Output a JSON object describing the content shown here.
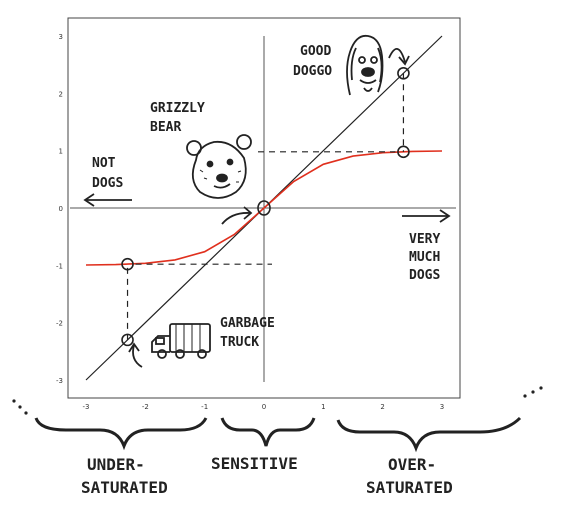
{
  "chart_data": {
    "type": "line",
    "xlim": [
      -3,
      3
    ],
    "ylim": [
      -3,
      3
    ],
    "x_ticks": [
      -3,
      -2,
      -1,
      0,
      1,
      2,
      3
    ],
    "y_ticks": [
      -3,
      -2,
      -1,
      0,
      1,
      2,
      3
    ],
    "series": [
      {
        "kind": "identity",
        "color": "#222222",
        "x": [
          -3,
          3
        ],
        "y": [
          -3,
          3
        ]
      },
      {
        "kind": "tanh",
        "color": "#e0301e",
        "x": [
          -3,
          -2.5,
          -2,
          -1.5,
          -1,
          -0.5,
          0,
          0.5,
          1,
          1.5,
          2,
          2.5,
          3
        ],
        "y": [
          -0.995,
          -0.987,
          -0.964,
          -0.905,
          -0.762,
          -0.462,
          0,
          0.462,
          0.762,
          0.905,
          0.964,
          0.987,
          0.995
        ]
      }
    ],
    "markers": [
      {
        "x": 2.35,
        "y": 2.35
      },
      {
        "x": 2.35,
        "y": 0.98
      },
      {
        "x": -2.3,
        "y": -2.3
      },
      {
        "x": -2.3,
        "y": -0.98
      },
      {
        "x": 0,
        "y": 0
      }
    ],
    "annotations": {
      "good_doggo": [
        "GOOD",
        "DOGGO"
      ],
      "grizzly_bear": [
        "GRIZZLY",
        "BEAR"
      ],
      "not_dogs": [
        "NOT",
        "DOGS"
      ],
      "very_much_dogs": [
        "VERY",
        "MUCH",
        "DOGS"
      ],
      "garbage_truck": [
        "GARBAGE",
        "TRUCK"
      ]
    }
  },
  "regions": {
    "under": [
      "UNDER-",
      "SATURATED"
    ],
    "sensitive": [
      "SENSITIVE"
    ],
    "over": [
      "OVER-",
      "SATURATED"
    ]
  },
  "icons": {
    "dog": "dog-icon",
    "bear": "bear-icon",
    "truck": "garbage-truck-icon"
  }
}
